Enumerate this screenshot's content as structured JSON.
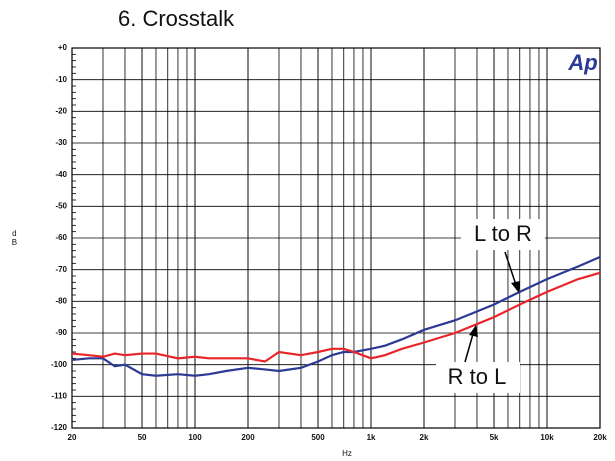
{
  "chart_data": {
    "type": "line",
    "title": "6. Crosstalk",
    "logo": "Ap",
    "xlabel": "Hz",
    "ylabel": "dB",
    "x": [
      20,
      25,
      30,
      35,
      40,
      50,
      60,
      80,
      100,
      120,
      150,
      200,
      250,
      300,
      400,
      500,
      600,
      700,
      800,
      1000,
      1200,
      1500,
      2000,
      3000,
      5000,
      7000,
      10000,
      15000,
      20000
    ],
    "series": [
      {
        "name": "L to R",
        "color": "#2b3a92",
        "values": [
          -98.5,
          -98,
          -98,
          -100.5,
          -100,
          -103,
          -103.5,
          -103,
          -103.5,
          -103,
          -102,
          -101,
          -101.5,
          -102,
          -101,
          -99,
          -97,
          -96,
          -96,
          -95,
          -94,
          -92,
          -89,
          -86,
          -81,
          -77,
          -73,
          -69,
          -66
        ]
      },
      {
        "name": "R to L",
        "color": "#e8262a",
        "values": [
          -96.5,
          -97,
          -97.5,
          -96.5,
          -97,
          -96.5,
          -96.5,
          -98,
          -97.5,
          -98,
          -98,
          -98,
          -99,
          -96,
          -97,
          -96,
          -95,
          -95,
          -96,
          -98,
          -97,
          -95,
          -93,
          -90,
          -85,
          -81,
          -77,
          -73,
          -71
        ]
      }
    ],
    "xlim": [
      20,
      20000
    ],
    "xscale": "log",
    "log_minor_grid": true,
    "xticks": [
      20,
      50,
      100,
      200,
      500,
      {
        "value": 1000,
        "label": "1k"
      },
      {
        "value": 2000,
        "label": "2k"
      },
      {
        "value": 5000,
        "label": "5k"
      },
      {
        "value": 10000,
        "label": "10k"
      },
      {
        "value": 20000,
        "label": "20k"
      }
    ],
    "ylim": [
      -120,
      0
    ],
    "yticks": [
      {
        "value": 0,
        "label": "+0"
      },
      -10,
      -20,
      -30,
      -40,
      -50,
      -60,
      -70,
      -80,
      -90,
      -100,
      -110,
      -120
    ],
    "y_minor_ticks": 5,
    "grid": true
  }
}
